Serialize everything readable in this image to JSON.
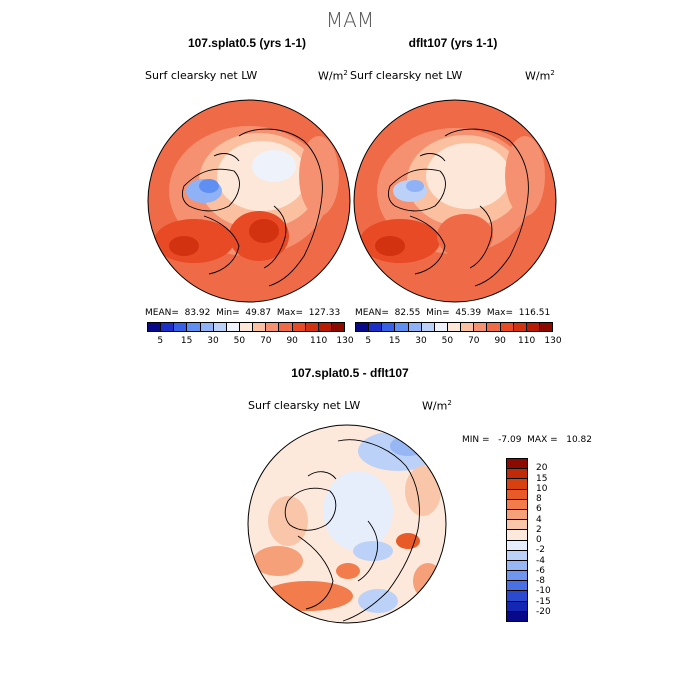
{
  "season": "MAM",
  "panels": [
    {
      "title": "107.splat0.5 (yrs 1-1)",
      "field": "Surf clearsky net LW",
      "units_base": "W/m",
      "units_exp": "2",
      "mean": "MEAN=  83.92",
      "min": "Min=  49.87",
      "max": "Max=  127.33"
    },
    {
      "title": "dflt107 (yrs 1-1)",
      "field": "Surf clearsky net LW",
      "units_base": "W/m",
      "units_exp": "2",
      "mean": "MEAN=  82.55",
      "min": "Min=  45.39",
      "max": "Max=  116.51"
    }
  ],
  "top_colorbar": {
    "colors": [
      "#08088a",
      "#1c2fc8",
      "#3660e8",
      "#5f8ff2",
      "#8fb2f6",
      "#bcd1f7",
      "#eef2fb",
      "#fde7d9",
      "#fbc0a0",
      "#f59170",
      "#ef6a47",
      "#e84a25",
      "#d23210",
      "#b81c05",
      "#8c0a00"
    ],
    "tick_labels": [
      "5",
      "15",
      "30",
      "50",
      "70",
      "90",
      "110",
      "130"
    ]
  },
  "diff_panel": {
    "title": "107.splat0.5 - dflt107",
    "field": "Surf clearsky net LW",
    "units_base": "W/m",
    "units_exp": "2",
    "stats": "MIN =   -7.09  MAX =   10.82",
    "colorbar_colors": [
      "#8c0a00",
      "#c02a08",
      "#d8400f",
      "#e85a28",
      "#f27c4c",
      "#f6a07a",
      "#f9c6aa",
      "#fde8dc",
      "#e6eefb",
      "#bcd1f7",
      "#97b6f4",
      "#6f96ee",
      "#4a70e6",
      "#2a4ad2",
      "#1427b4",
      "#08088a"
    ],
    "colorbar_labels": [
      "20",
      "15",
      "10",
      "8",
      "6",
      "4",
      "2",
      "0",
      "-2",
      "-4",
      "-6",
      "-8",
      "-10",
      "-15",
      "-20"
    ]
  }
}
